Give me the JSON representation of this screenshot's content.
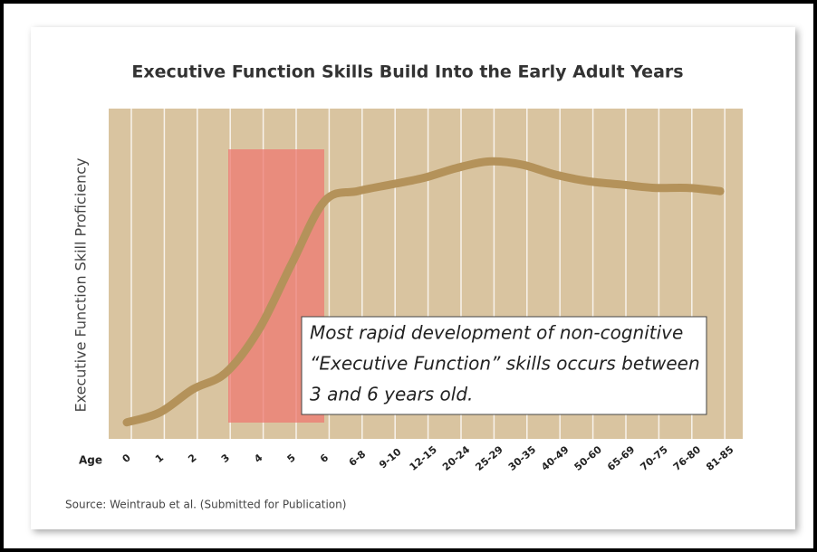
{
  "chart_data": {
    "type": "line",
    "title": "Executive Function Skills Build Into the Early Adult Years",
    "y_label": "Executive Function Skill Proficiency",
    "x_label": "Age",
    "categories": [
      "0",
      "1",
      "2",
      "3",
      "4",
      "5",
      "6",
      "6-8",
      "9-10",
      "12-15",
      "20-24",
      "25-29",
      "30-35",
      "40-49",
      "50-60",
      "65-69",
      "70-75",
      "76-80",
      "81-85"
    ],
    "series": [
      {
        "name": "Executive Function Skill Proficiency",
        "color": "#b4925a",
        "values": [
          5,
          8,
          15,
          20,
          33,
          53,
          72,
          75,
          77,
          79,
          82,
          84,
          83,
          80,
          78,
          77,
          76,
          76,
          75
        ]
      }
    ],
    "ylim": [
      0,
      100
    ],
    "annotation": [
      "Most rapid development of non-cognitive",
      "“Executive Function” skills occurs between",
      "3 and 6 years old."
    ],
    "source": "Source: Weintraub et al. (Submitted for Publication)"
  }
}
